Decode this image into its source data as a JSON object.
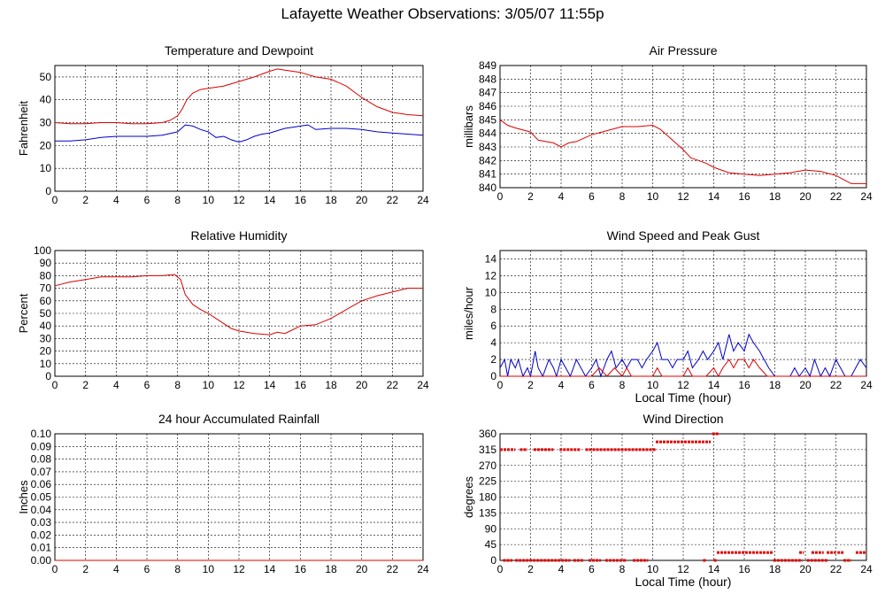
{
  "page": {
    "title": "Lafayette Weather Observations: 3/05/07 11:55p"
  },
  "colors": {
    "primary_series": "#dd0000",
    "secondary_series": "#0000cc",
    "grid": "#000000",
    "background": "#ffffff"
  },
  "chart_data": [
    {
      "id": "temp",
      "type": "line",
      "title": "Temperature and Dewpoint",
      "xlabel": "",
      "ylabel": "Fahrenheit",
      "xlim": [
        0,
        24
      ],
      "ylim": [
        0,
        55
      ],
      "xticks": [
        0,
        2,
        4,
        6,
        8,
        10,
        12,
        14,
        16,
        18,
        20,
        22,
        24
      ],
      "yticks": [
        0,
        10,
        20,
        30,
        40,
        50
      ],
      "grid": true,
      "series": [
        {
          "color": "#dd0000",
          "x": [
            0,
            1,
            2,
            3,
            4,
            5,
            6,
            7,
            7.5,
            8,
            8.3,
            8.6,
            9,
            9.5,
            10,
            11,
            12,
            13,
            14,
            14.5,
            15,
            16,
            17,
            18,
            19,
            20,
            21,
            22,
            23,
            24
          ],
          "y": [
            30,
            29.5,
            29.5,
            30,
            30,
            29.5,
            29.5,
            30,
            31,
            33,
            36,
            40,
            43,
            44.5,
            45,
            46,
            48,
            50,
            52.5,
            53.5,
            53,
            52,
            50,
            49,
            46,
            41,
            37,
            34.5,
            33.5,
            33
          ]
        },
        {
          "color": "#0000cc",
          "x": [
            0,
            1,
            2,
            3,
            4,
            5,
            6,
            7,
            8,
            8.5,
            9,
            9.5,
            10,
            10.5,
            11,
            11.5,
            12,
            12.5,
            13,
            13.5,
            14,
            14.5,
            15,
            15.5,
            16,
            16.5,
            17,
            18,
            19,
            20,
            21,
            22,
            23,
            24
          ],
          "y": [
            22,
            22,
            22.5,
            23.5,
            24,
            24,
            24,
            24.5,
            26,
            29,
            28.5,
            27,
            26,
            23.5,
            24,
            22.5,
            21.5,
            22.5,
            24,
            25,
            25.5,
            26.5,
            27.5,
            28,
            28.5,
            29,
            27,
            27.5,
            27.5,
            27,
            26,
            25.5,
            25,
            24.5
          ]
        }
      ]
    },
    {
      "id": "pressure",
      "type": "line",
      "title": "Air Pressure",
      "xlabel": "",
      "ylabel": "millibars",
      "xlim": [
        0,
        24
      ],
      "ylim": [
        840,
        849
      ],
      "xticks": [
        0,
        2,
        4,
        6,
        8,
        10,
        12,
        14,
        16,
        18,
        20,
        22,
        24
      ],
      "yticks": [
        840,
        841,
        842,
        843,
        844,
        845,
        846,
        847,
        848,
        849
      ],
      "grid": true,
      "series": [
        {
          "color": "#dd0000",
          "x": [
            0,
            0.5,
            1,
            2,
            2.5,
            3,
            3.5,
            4,
            4.5,
            5,
            6,
            7,
            8,
            9,
            10,
            10.5,
            11,
            11.5,
            12,
            12.5,
            13,
            13.5,
            14,
            14.5,
            15,
            16,
            17,
            18,
            19,
            20,
            21,
            22,
            22.5,
            23,
            24
          ],
          "y": [
            845,
            844.6,
            844.4,
            844.1,
            843.5,
            843.4,
            843.3,
            843,
            843.3,
            843.4,
            843.9,
            844.2,
            844.5,
            844.5,
            844.6,
            844.3,
            843.8,
            843.3,
            842.8,
            842.2,
            842,
            841.8,
            841.5,
            841.3,
            841.1,
            841,
            840.9,
            841,
            841.1,
            841.3,
            841.2,
            840.9,
            840.6,
            840.3,
            840.3
          ]
        }
      ]
    },
    {
      "id": "humidity",
      "type": "line",
      "title": "Relative Humidity",
      "xlabel": "",
      "ylabel": "Percent",
      "xlim": [
        0,
        24
      ],
      "ylim": [
        0,
        100
      ],
      "xticks": [
        0,
        2,
        4,
        6,
        8,
        10,
        12,
        14,
        16,
        18,
        20,
        22,
        24
      ],
      "yticks": [
        0,
        10,
        20,
        30,
        40,
        50,
        60,
        70,
        80,
        90,
        100
      ],
      "grid": true,
      "series": [
        {
          "color": "#dd0000",
          "x": [
            0,
            1,
            2,
            3,
            4,
            5,
            6,
            7,
            7.8,
            8.2,
            8.5,
            9,
            9.5,
            10,
            10.5,
            11,
            11.5,
            12,
            13,
            14,
            14.5,
            15,
            15.5,
            16,
            17,
            18,
            19,
            20,
            21,
            22,
            23,
            24
          ],
          "y": [
            72,
            75,
            77,
            79,
            79,
            79,
            80,
            80,
            81,
            77,
            65,
            57,
            53,
            50,
            46,
            42,
            38,
            36,
            34,
            33,
            35,
            34,
            37,
            40,
            41,
            46,
            53,
            60,
            64,
            67,
            70,
            70
          ]
        }
      ]
    },
    {
      "id": "wind",
      "type": "line",
      "title": "Wind Speed and Peak Gust",
      "xlabel": "Local Time (hour)",
      "ylabel": "miles/hour",
      "xlim": [
        0,
        24
      ],
      "ylim": [
        0,
        15
      ],
      "xticks": [
        0,
        2,
        4,
        6,
        8,
        10,
        12,
        14,
        16,
        18,
        20,
        22,
        24
      ],
      "yticks": [
        0,
        2,
        4,
        6,
        8,
        10,
        12,
        14
      ],
      "grid": true,
      "series": [
        {
          "color": "#0000cc",
          "x": [
            0,
            0.3,
            0.5,
            0.7,
            1,
            1.2,
            1.5,
            1.8,
            2,
            2.3,
            2.5,
            2.8,
            3.2,
            3.5,
            3.7,
            4,
            4.3,
            4.6,
            5,
            5.3,
            5.6,
            6,
            6.3,
            6.6,
            7,
            7.3,
            7.6,
            8,
            8.3,
            8.6,
            9,
            9.3,
            9.6,
            10,
            10.3,
            10.6,
            11,
            11.3,
            11.6,
            12,
            12.3,
            12.6,
            13,
            13.3,
            13.6,
            14,
            14.3,
            14.6,
            15,
            15.3,
            15.6,
            16,
            16.3,
            16.6,
            17,
            17.3,
            17.6,
            18,
            19,
            19.3,
            19.6,
            20,
            20.3,
            20.6,
            21,
            21.3,
            21.6,
            22,
            22.3,
            22.6,
            23,
            23.3,
            23.6,
            24
          ],
          "y": [
            1,
            2,
            0,
            2,
            1,
            2,
            0,
            1,
            0,
            3,
            1,
            0,
            2,
            1,
            0,
            2,
            1,
            0,
            2,
            1,
            0,
            1,
            2,
            0,
            2,
            3,
            1,
            2,
            1,
            2,
            2,
            1,
            2,
            3,
            4,
            2,
            2,
            1,
            2,
            2,
            3,
            1,
            2,
            3,
            2,
            3,
            4,
            2,
            5,
            3,
            4,
            3,
            5,
            4,
            3,
            2,
            1,
            0,
            0,
            1,
            0,
            1,
            0,
            2,
            0,
            1,
            0,
            2,
            1,
            0,
            0,
            1,
            2,
            1
          ]
        },
        {
          "color": "#dd0000",
          "x": [
            0,
            1,
            2,
            3,
            4,
            5,
            6,
            6.5,
            7,
            7.5,
            8,
            8.3,
            8.6,
            9,
            10,
            10.3,
            10.6,
            11,
            11.5,
            12,
            12.3,
            12.6,
            13,
            13.5,
            14,
            14.3,
            14.6,
            15,
            15.3,
            15.6,
            16,
            16.3,
            16.6,
            17,
            17.5,
            18,
            24
          ],
          "y": [
            0,
            0,
            0,
            0,
            0,
            0,
            0,
            1,
            0,
            1,
            0,
            1,
            0,
            0,
            0,
            1,
            0,
            0,
            0,
            0,
            1,
            0,
            0,
            0,
            1,
            0,
            1,
            2,
            1,
            2,
            2,
            1,
            2,
            1,
            0,
            0,
            0
          ]
        }
      ]
    },
    {
      "id": "rain",
      "type": "line",
      "title": "24 hour Accumulated Rainfall",
      "xlabel": "",
      "ylabel": "Inches",
      "xlim": [
        0,
        24
      ],
      "ylim": [
        0,
        0.1
      ],
      "xticks": [
        0,
        2,
        4,
        6,
        8,
        10,
        12,
        14,
        16,
        18,
        20,
        22,
        24
      ],
      "yticks": [
        "0.00",
        "0.01",
        "0.02",
        "0.03",
        "0.04",
        "0.05",
        "0.06",
        "0.07",
        "0.08",
        "0.09",
        "0.10"
      ],
      "grid": true,
      "series": [
        {
          "color": "#dd0000",
          "x": [
            0,
            24
          ],
          "y": [
            0,
            0
          ]
        }
      ]
    },
    {
      "id": "direction",
      "type": "scatter",
      "title": "Wind Direction",
      "xlabel": "Local Time (hour)",
      "ylabel": "degrees",
      "xlim": [
        0,
        24
      ],
      "ylim": [
        0,
        360
      ],
      "xticks": [
        0,
        2,
        4,
        6,
        8,
        10,
        12,
        14,
        16,
        18,
        20,
        22,
        24
      ],
      "yticks": [
        0,
        45,
        90,
        135,
        180,
        225,
        270,
        315,
        360
      ],
      "grid": true,
      "series": [
        {
          "color": "#dd0000",
          "segments": [
            [
              0,
              1,
              315
            ],
            [
              1.3,
              1.8,
              315
            ],
            [
              2.2,
              3.5,
              315
            ],
            [
              3.9,
              5.3,
              315
            ],
            [
              5.6,
              10.2,
              315
            ],
            [
              10.2,
              13.8,
              337
            ],
            [
              13.9,
              14.3,
              360
            ],
            [
              0.2,
              0.8,
              0
            ],
            [
              1,
              4.6,
              0
            ],
            [
              4.8,
              5.5,
              0
            ],
            [
              5.8,
              6.6,
              0
            ],
            [
              6.9,
              8.3,
              0
            ],
            [
              8.7,
              9.7,
              0
            ],
            [
              13.3,
              13.5,
              0
            ],
            [
              14.0,
              14.2,
              0
            ],
            [
              14.2,
              17.9,
              22.5
            ],
            [
              17.9,
              19.8,
              0
            ],
            [
              20.1,
              21.5,
              0
            ],
            [
              22.5,
              23.0,
              0
            ],
            [
              19.6,
              19.9,
              22.5
            ],
            [
              20.4,
              21.2,
              22.5
            ],
            [
              21.4,
              22.0,
              22.5
            ],
            [
              22.1,
              22.5,
              22.5
            ],
            [
              23.3,
              24,
              22.5
            ]
          ]
        }
      ]
    }
  ]
}
